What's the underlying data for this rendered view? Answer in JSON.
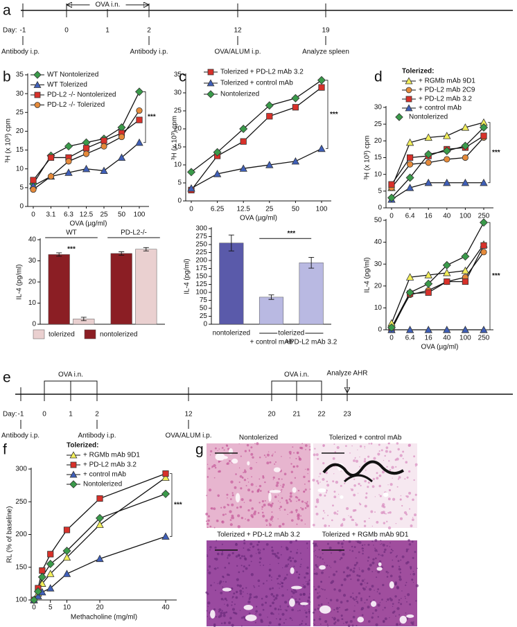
{
  "panel_labels": [
    "a",
    "b",
    "c",
    "d",
    "e",
    "f",
    "g"
  ],
  "timelines": [
    {
      "day_label": "Day:",
      "days": [
        -1,
        0,
        1,
        2,
        12,
        19
      ],
      "events": [
        {
          "day": -1,
          "label": "Antibody i.p."
        },
        {
          "day": 2,
          "label": "Antibody i.p."
        },
        {
          "day": 12,
          "label": "OVA/ALUM i.p."
        },
        {
          "day": 19,
          "label": "Analyze spleen"
        }
      ],
      "intervals": [
        {
          "from": 0,
          "to": 2,
          "label": "OVA i.n."
        }
      ]
    },
    {
      "day_label": "Day:",
      "days": [
        -1,
        0,
        1,
        2,
        12,
        20,
        21,
        22,
        23
      ],
      "events": [
        {
          "day": -1,
          "label": "Antibody i.p."
        },
        {
          "day": 2,
          "label": "Antibody i.p."
        },
        {
          "day": 12,
          "label": "OVA/ALUM i.p."
        },
        {
          "day": 23,
          "label": "Analyze AHR"
        }
      ],
      "intervals": [
        {
          "from": 0,
          "to": 2,
          "label": "OVA i.n."
        },
        {
          "from": 20,
          "to": 22,
          "label": "OVA i.n."
        }
      ]
    }
  ],
  "chart_data": [
    {
      "type": "line",
      "categories": [
        "0",
        "3.1",
        "6.3",
        "12.5",
        "25",
        "50",
        "100"
      ],
      "xlabel": "OVA (µg/ml)",
      "ylabel": "³H (x 10³) cpm",
      "ylim": [
        0,
        35
      ],
      "yticks": [
        0,
        5,
        10,
        15,
        20,
        25,
        30,
        35
      ],
      "annotation": "***",
      "series": [
        {
          "name": "WT Nontolerized",
          "color": "#3a9a4a",
          "marker": "diamond",
          "values": [
            6,
            13.5,
            16,
            17,
            18,
            21,
            30.5
          ]
        },
        {
          "name": "WT Tolerized",
          "color": "#3f5fb8",
          "marker": "triangle",
          "values": [
            5.5,
            8,
            9,
            10,
            9.5,
            13,
            17
          ]
        },
        {
          "name": "PD-L2 -/- Nontolerized",
          "color": "#d8312a",
          "marker": "square",
          "values": [
            7,
            13,
            13,
            15.5,
            17.5,
            19.5,
            23
          ]
        },
        {
          "name": "PD-L2 -/- Tolerized",
          "color": "#e58a3a",
          "marker": "circle",
          "values": [
            4.5,
            8,
            12,
            14,
            16,
            18.5,
            25.5
          ]
        }
      ]
    },
    {
      "type": "bar",
      "categories": [
        "WT",
        "PD-L2-/-"
      ],
      "ylabel": "IL-4 (pg/ml)",
      "ylim": [
        0,
        40
      ],
      "yticks": [
        0,
        10,
        20,
        30,
        40
      ],
      "annotation": "***",
      "series": [
        {
          "name": "tolerized",
          "color": "#ead0d0",
          "values": [
            2.5,
            35.5
          ],
          "errors": [
            0.8,
            0.8
          ]
        },
        {
          "name": "nontolerized",
          "color": "#8b1e24",
          "values": [
            33,
            33.5
          ],
          "errors": [
            0.8,
            0.8
          ]
        }
      ]
    },
    {
      "type": "line",
      "categories": [
        "0",
        "6.25",
        "12.5",
        "25",
        "50",
        "100"
      ],
      "xlabel": "OVA (µg/ml)",
      "ylabel": "³H (x 10³) cpm",
      "ylim": [
        0,
        35
      ],
      "yticks": [
        0,
        5,
        10,
        15,
        20,
        25,
        30,
        35
      ],
      "annotation": "***",
      "series": [
        {
          "name": "Tolerized + PD-L2 mAb 3.2",
          "color": "#d8312a",
          "marker": "square",
          "values": [
            3,
            12.5,
            16.5,
            23.5,
            26,
            31.5
          ]
        },
        {
          "name": "Tolerized + control mAb",
          "color": "#3f5fb8",
          "marker": "triangle",
          "values": [
            3.5,
            7.5,
            9,
            10,
            11,
            14.5
          ]
        },
        {
          "name": "Nontolerized",
          "color": "#3a9a4a",
          "marker": "diamond",
          "values": [
            8,
            13.5,
            20,
            26.5,
            28.5,
            33.5
          ]
        }
      ]
    },
    {
      "type": "bar",
      "categories": [
        "nontolerized",
        "+ control mAb",
        "+PD-L2 mAb 3.2"
      ],
      "group_label": "tolerized",
      "ylabel": "IL-4 (pg/ml)",
      "ylim": [
        0,
        300
      ],
      "yticks": [
        0,
        25,
        50,
        75,
        100,
        125,
        150,
        175,
        200,
        225,
        250,
        275,
        300
      ],
      "annotation": "***",
      "values": [
        255,
        85,
        193
      ],
      "errors": [
        25,
        7,
        17
      ],
      "colors": [
        "#5a5aaa",
        "#b9b9e2",
        "#b9b9e2"
      ]
    },
    {
      "type": "line",
      "categories": [
        "0",
        "6.4",
        "16",
        "40",
        "100",
        "250"
      ],
      "ylabel": "³H (x 10³) cpm",
      "legend_title": "Tolerized:",
      "ylim": [
        0,
        30
      ],
      "yticks": [
        0,
        5,
        10,
        15,
        20,
        25,
        30
      ],
      "annotation": "***",
      "series": [
        {
          "name": "+ RGMb mAb 9D1",
          "color": "#f2ee5a",
          "marker": "triangle",
          "values": [
            6,
            19.5,
            21,
            21.5,
            24,
            25.5
          ]
        },
        {
          "name": "+ PD-L2 mAb 2C9",
          "color": "#e58a3a",
          "marker": "circle",
          "values": [
            6,
            13,
            13.5,
            14.5,
            15,
            21
          ]
        },
        {
          "name": "+ PD-L2 mAb 3.2",
          "color": "#d8312a",
          "marker": "square",
          "values": [
            7,
            15,
            15.5,
            17.5,
            18,
            21.5
          ]
        },
        {
          "name": "+ control mAb",
          "color": "#3f5fb8",
          "marker": "triangle",
          "values": [
            2.5,
            6,
            7.5,
            7.5,
            7.5,
            7.5
          ]
        },
        {
          "name": "Nontolerized",
          "color": "#3a9a4a",
          "marker": "diamond",
          "values": [
            3,
            9,
            16,
            17,
            18.5,
            24
          ]
        }
      ]
    },
    {
      "type": "line",
      "categories": [
        "0",
        "6.4",
        "16",
        "40",
        "100",
        "250"
      ],
      "xlabel": "OVA (µg/ml)",
      "ylabel": "IL-4 (pg/ml)",
      "ylim": [
        0,
        50
      ],
      "yticks": [
        0,
        10,
        20,
        30,
        40,
        50
      ],
      "annotation": "***",
      "series": [
        {
          "color": "#f2ee5a",
          "marker": "triangle",
          "values": [
            3,
            24,
            25,
            26,
            27,
            39
          ]
        },
        {
          "color": "#e58a3a",
          "marker": "circle",
          "values": [
            1,
            16,
            18,
            22,
            24,
            35.5
          ]
        },
        {
          "color": "#d8312a",
          "marker": "square",
          "values": [
            0,
            16.5,
            17,
            22,
            22,
            38.5
          ]
        },
        {
          "color": "#3f5fb8",
          "marker": "triangle",
          "values": [
            0,
            0,
            0,
            0,
            0,
            0
          ]
        },
        {
          "color": "#3a9a4a",
          "marker": "diamond",
          "values": [
            1,
            17,
            21,
            29.5,
            33.5,
            49
          ]
        }
      ]
    },
    {
      "type": "line",
      "x": [
        0,
        1.25,
        2.5,
        5,
        10,
        20,
        40
      ],
      "xlim": [
        0,
        40
      ],
      "xticks": [
        0,
        5,
        10,
        20,
        40
      ],
      "xlabel": "Methacholine (mg/ml)",
      "ylabel": "RL (% of baseline)",
      "ylim": [
        100,
        300
      ],
      "yticks": [
        100,
        150,
        200,
        250,
        300
      ],
      "legend_title": "Tolerized:",
      "annotation": "***",
      "series": [
        {
          "name": "+ RGMb mAb 9D1",
          "color": "#f2ee5a",
          "marker": "triangle",
          "values": [
            100,
            110,
            125,
            140,
            165,
            215,
            287
          ]
        },
        {
          "name": "+ PD-L2 mAb 3.2",
          "color": "#d8312a",
          "marker": "square",
          "values": [
            100,
            118,
            145,
            170,
            207,
            255,
            293
          ]
        },
        {
          "name": "+ control mAb",
          "color": "#3f5fb8",
          "marker": "triangle",
          "values": [
            100,
            106,
            112,
            118,
            140,
            163,
            197
          ]
        },
        {
          "name": "Nontolerized",
          "color": "#3a9a4a",
          "marker": "diamond",
          "values": [
            100,
            113,
            135,
            155,
            175,
            225,
            262
          ]
        }
      ]
    }
  ],
  "histology": [
    {
      "caption": "Nontolerized"
    },
    {
      "caption": "Tolerized + control mAb"
    },
    {
      "caption": "Tolerized + PD-L2 mAb 3.2"
    },
    {
      "caption": "Tolerized + RGMb mAb 9D1"
    }
  ]
}
